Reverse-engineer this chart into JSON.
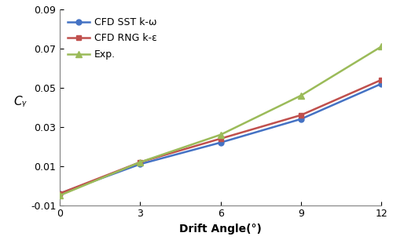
{
  "x": [
    0,
    3,
    6,
    9,
    12
  ],
  "sst_kw": [
    -0.004,
    0.011,
    0.022,
    0.034,
    0.052
  ],
  "rng_ke": [
    -0.004,
    0.012,
    0.024,
    0.036,
    0.054
  ],
  "exp": [
    -0.005,
    0.012,
    0.026,
    0.046,
    0.071
  ],
  "sst_color": "#4472C4",
  "rng_color": "#C0504D",
  "exp_color": "#9BBB59",
  "xlabel": "Drift Angle(°)",
  "ylabel": "Cᵧ",
  "ylim": [
    -0.01,
    0.09
  ],
  "xlim": [
    0,
    12
  ],
  "yticks": [
    -0.01,
    0.01,
    0.03,
    0.05,
    0.07,
    0.09
  ],
  "xticks": [
    0,
    3,
    6,
    9,
    12
  ],
  "legend_sst": "CFD SST k-ω",
  "legend_rng": "CFD RNG k-ε",
  "legend_exp": "Exp.",
  "bg_color": "#FFFFFF",
  "spine_color": "#808080"
}
